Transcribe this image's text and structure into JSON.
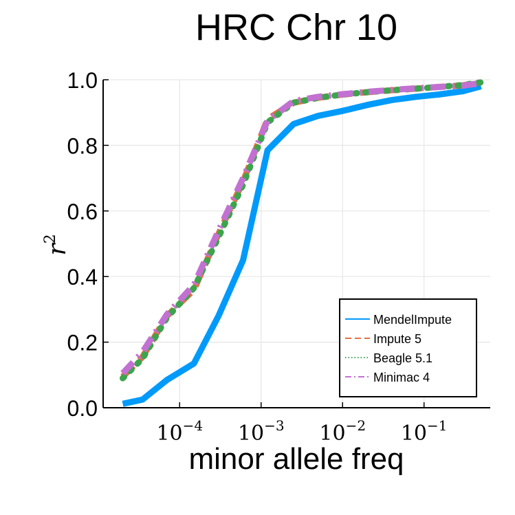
{
  "chart_data": {
    "type": "line",
    "title": "HRC Chr 10",
    "xlabel": "minor allele freq",
    "ylabel_base": "r",
    "ylabel_exp": "2",
    "x_scale": "log10",
    "xlim": [
      1.15e-05,
      0.65
    ],
    "ylim": [
      0,
      1
    ],
    "x_ticks": [
      {
        "value": 0.0001,
        "base": "10",
        "exp": "−4"
      },
      {
        "value": 0.001,
        "base": "10",
        "exp": "−3"
      },
      {
        "value": 0.01,
        "base": "10",
        "exp": "−2"
      },
      {
        "value": 0.1,
        "base": "10",
        "exp": "−1"
      }
    ],
    "y_ticks": [
      "0.0",
      "0.2",
      "0.4",
      "0.6",
      "0.8",
      "1.0"
    ],
    "grid": true,
    "legend_position": "bottom-right",
    "series": [
      {
        "name": "MendelImpute",
        "color": "#009AFA",
        "dash": "solid",
        "x": [
          2e-05,
          3.5e-05,
          7e-05,
          0.00015,
          0.0003,
          0.0006,
          0.0012,
          0.0025,
          0.005,
          0.01,
          0.02,
          0.04,
          0.08,
          0.15,
          0.3,
          0.5
        ],
        "y": [
          0.012,
          0.025,
          0.085,
          0.135,
          0.28,
          0.45,
          0.785,
          0.865,
          0.89,
          0.905,
          0.923,
          0.938,
          0.948,
          0.955,
          0.965,
          0.98
        ]
      },
      {
        "name": "Impute 5",
        "color": "#E26F46",
        "dash": "dash",
        "x": [
          2e-05,
          3.5e-05,
          7e-05,
          0.00015,
          0.0003,
          0.0006,
          0.0012,
          0.0025,
          0.005,
          0.01,
          0.02,
          0.04,
          0.08,
          0.15,
          0.3,
          0.5
        ],
        "y": [
          0.095,
          0.155,
          0.28,
          0.36,
          0.53,
          0.69,
          0.88,
          0.93,
          0.945,
          0.955,
          0.962,
          0.968,
          0.973,
          0.978,
          0.983,
          0.992
        ]
      },
      {
        "name": "Beagle 5.1",
        "color": "#3DA44D",
        "dash": "dot",
        "x": [
          2e-05,
          3.5e-05,
          7e-05,
          0.00015,
          0.0003,
          0.0006,
          0.0012,
          0.0025,
          0.005,
          0.01,
          0.02,
          0.04,
          0.08,
          0.15,
          0.3,
          0.5
        ],
        "y": [
          0.09,
          0.15,
          0.275,
          0.365,
          0.52,
          0.68,
          0.87,
          0.93,
          0.945,
          0.955,
          0.962,
          0.968,
          0.973,
          0.978,
          0.984,
          0.992
        ]
      },
      {
        "name": "Minimac 4",
        "color": "#C271D2",
        "dash": "dashdot",
        "x": [
          2e-05,
          3.5e-05,
          7e-05,
          0.00015,
          0.0003,
          0.0006,
          0.0012,
          0.0025,
          0.005,
          0.01,
          0.02,
          0.04,
          0.08,
          0.15,
          0.3,
          0.5
        ],
        "y": [
          0.105,
          0.17,
          0.285,
          0.375,
          0.54,
          0.7,
          0.875,
          0.935,
          0.948,
          0.956,
          0.963,
          0.969,
          0.974,
          0.978,
          0.982,
          0.99
        ]
      }
    ]
  }
}
